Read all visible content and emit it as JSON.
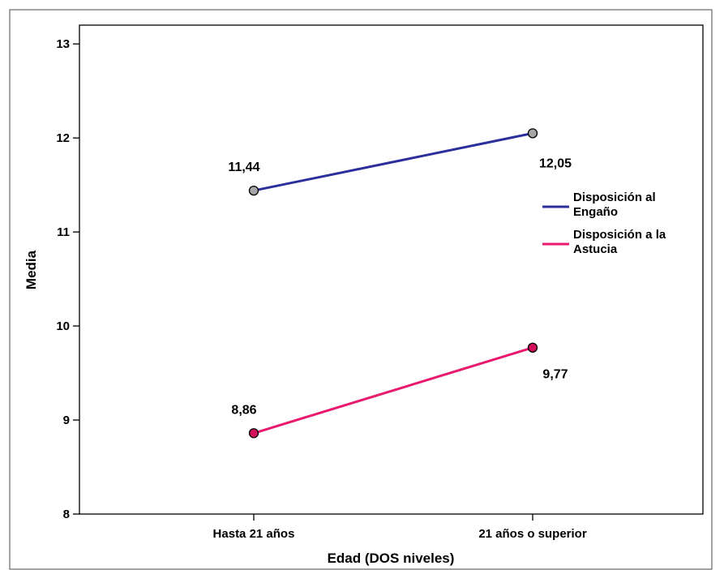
{
  "chart_data": {
    "type": "line",
    "xlabel": "Edad (DOS niveles)",
    "ylabel": "Media",
    "categories": [
      "Hasta 21 años",
      "21 años o superior"
    ],
    "ylim": [
      8,
      13.2
    ],
    "yticks": [
      "8",
      "9",
      "10",
      "11",
      "12",
      "13"
    ],
    "grid": false,
    "legend_position": "right",
    "series": [
      {
        "name": "Disposición al Engaño",
        "legend_lines": [
          "Disposición al",
          "Engaño"
        ],
        "values": [
          11.44,
          12.05
        ],
        "labels": [
          "11,44",
          "12,05"
        ],
        "color": "#2b2f9c",
        "marker_color": "#a6a6a6"
      },
      {
        "name": "Disposición a la Astucia",
        "legend_lines": [
          "Disposición a la",
          "Astucia"
        ],
        "values": [
          8.86,
          9.77
        ],
        "labels": [
          "8,86",
          "9,77"
        ],
        "color": "#e8196e",
        "marker_color": "#d10f5a"
      }
    ]
  }
}
